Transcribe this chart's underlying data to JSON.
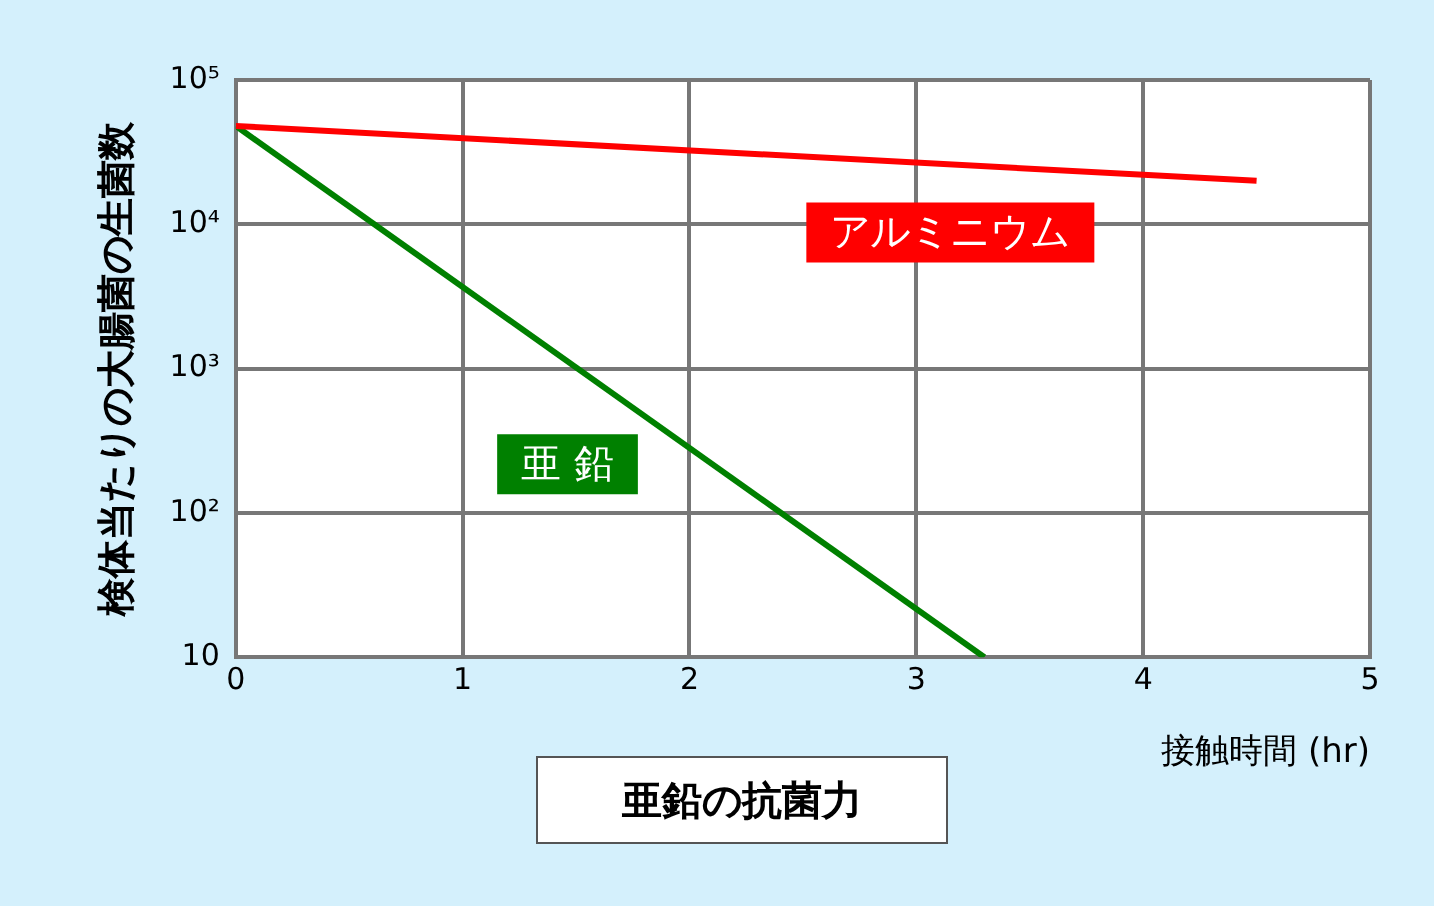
{
  "chart_data": {
    "type": "line",
    "title": "亜鉛の抗菌力",
    "xlabel": "接触時間 (hr)",
    "ylabel": "検体当たりの大腸菌の生菌数",
    "log": "y",
    "xlim": [
      0,
      5
    ],
    "xticks": [
      0,
      1,
      2,
      3,
      4,
      5
    ],
    "ylim": [
      10,
      100000
    ],
    "yticks": [
      {
        "value": 10,
        "label": "10"
      },
      {
        "value": 100,
        "label": "10²"
      },
      {
        "value": 1000,
        "label": "10³"
      },
      {
        "value": 10000,
        "label": "10⁴"
      },
      {
        "value": 100000,
        "label": "10⁵"
      }
    ],
    "grid": true,
    "legend": false,
    "marker": "none",
    "line_style": "solid",
    "series": [
      {
        "name": "アルミニウム",
        "color": "#ff0000",
        "x": [
          0,
          4.5
        ],
        "values": [
          48000,
          20000
        ]
      },
      {
        "name": "亜 鉛",
        "color": "#008000",
        "x": [
          0,
          3.3
        ],
        "values": [
          48000,
          10
        ]
      }
    ]
  }
}
